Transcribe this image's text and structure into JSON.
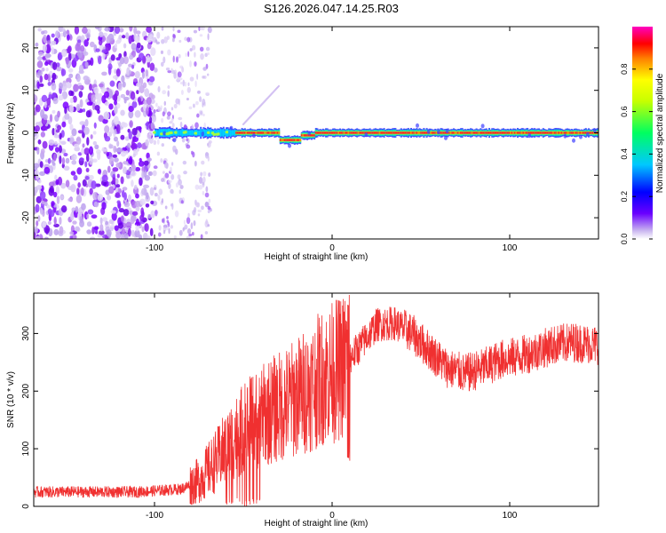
{
  "title": "S126.2026.047.14.25.R03",
  "chart_data": [
    {
      "type": "heatmap",
      "name": "spectrogram",
      "xlabel": "Height of straight line (km)",
      "ylabel": "Frequency (Hz)",
      "xlim": [
        -168,
        150
      ],
      "ylim": [
        -25,
        25
      ],
      "xticks": [
        -100,
        0,
        100
      ],
      "yticks": [
        -20,
        -10,
        0,
        10,
        20
      ],
      "colorbar": {
        "label": "Normalized spectral amplitude",
        "range": [
          0.0,
          1.0
        ],
        "ticks": [
          0.0,
          0.2,
          0.4,
          0.6,
          0.8
        ]
      },
      "bands": [
        {
          "x_from": -168,
          "x_to": -100,
          "freq_spread": 25,
          "amplitude": 0.15,
          "note": "broadband noise"
        },
        {
          "x_from": -100,
          "x_to": -68,
          "freq_spread": 25,
          "amplitude": 0.08,
          "note": "sparse noise"
        },
        {
          "x_from": -100,
          "x_to": -55,
          "freq": 0,
          "amplitude": 0.45,
          "note": "carrier emerging"
        },
        {
          "x_from": -55,
          "x_to": 150,
          "freq": 0,
          "amplitude": 0.95,
          "note": "strong carrier"
        }
      ],
      "line_features": [
        {
          "x_from": -50,
          "x_to": -30,
          "freq_from": 2,
          "freq_to": 11,
          "amplitude": 0.2
        }
      ]
    },
    {
      "type": "line",
      "name": "snr",
      "xlabel": "Height of straight line (km)",
      "ylabel": "SNR (10 * v/v)",
      "xlim": [
        -168,
        150
      ],
      "ylim": [
        0,
        370
      ],
      "xticks": [
        -100,
        0,
        100
      ],
      "yticks": [
        0,
        100,
        200,
        300
      ],
      "color": "#f03030",
      "series": [
        {
          "name": "SNR",
          "x": [
            -168,
            -150,
            -130,
            -110,
            -95,
            -85,
            -75,
            -65,
            -55,
            -45,
            -35,
            -25,
            -15,
            -5,
            5,
            15,
            25,
            35,
            45,
            55,
            65,
            75,
            85,
            95,
            105,
            115,
            125,
            135,
            150
          ],
          "y": [
            25,
            25,
            25,
            25,
            28,
            30,
            45,
            80,
            120,
            145,
            165,
            180,
            200,
            225,
            240,
            275,
            315,
            318,
            300,
            270,
            240,
            230,
            240,
            255,
            260,
            270,
            280,
            285,
            280
          ]
        }
      ]
    }
  ]
}
